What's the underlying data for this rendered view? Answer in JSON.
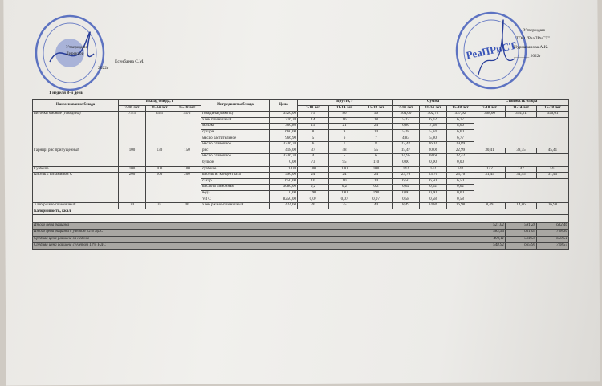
{
  "header_left": {
    "approve": "Утверждаю",
    "position": "Директор",
    "name": "Есенбаева С.М.",
    "year": "2022г",
    "day": "1 неделя 8-й день"
  },
  "header_right": {
    "approve": "Утверждаю",
    "org": "ТОО \"РеаПРиСТ\"",
    "name": "Нурмаханова А.К.",
    "year": "_______ 2022г"
  },
  "stamps": {
    "left_text": "Қазақстан Республикасы білім беру мемлекеттік мекемесі",
    "right_text": "РеаПРиСТ"
  },
  "table": {
    "headers": {
      "name": "Наименование блюда",
      "yield": "Выход блюда, г",
      "ingredients": "Ингредиенты блюда",
      "price": "Цена",
      "brutto": "Брутто, г",
      "sum": "Сумма",
      "cost": "Стоимость блюда",
      "ages": [
        "7-10 лет",
        "11-14 лет",
        "15-18 лет"
      ]
    },
    "dishes": [
      {
        "name": "Биточки мясные (говядина)",
        "yield": [
          "75/5",
          "85/5",
          "95/5"
        ],
        "cost": [
          "308,66",
          "354,21",
          "396,61"
        ],
        "ingredients": [
          {
            "name": "говядина (мякоть)",
            "price": "3520,00",
            "brutto": [
              "75",
              "86",
              "96"
            ],
            "sum": [
              "264,00",
              "302,72",
              "337,92"
            ]
          },
          {
            "name": "хлеб пшеничный",
            "price": "376,20",
            "brutto": [
              "14",
              "16",
              "18"
            ],
            "sum": [
              "5,27",
              "6,02",
              "6,77"
            ]
          },
          {
            "name": "молоко",
            "price": "360,80",
            "brutto": [
              "19",
              "21",
              "24"
            ],
            "sum": [
              "6,86",
              "7,58",
              "8,66"
            ]
          },
          {
            "name": "сухари",
            "price": "660,00",
            "brutto": [
              "8",
              "9",
              "10"
            ],
            "sum": [
              "5,28",
              "5,94",
              "6,60"
            ]
          },
          {
            "name": "масло растительное",
            "price": "966,90",
            "brutto": [
              "5",
              "6",
              "7"
            ],
            "sum": [
              "4,83",
              "5,80",
              "6,77"
            ]
          },
          {
            "name": "масло сливочное",
            "price": "3736,70",
            "brutto": [
              "6",
              "7",
              "8"
            ],
            "sum": [
              "22,42",
              "26,16",
              "29,89"
            ]
          }
        ]
      },
      {
        "name": "Гарнир: рис припущенный",
        "yield": [
          "100",
          "130",
          "150"
        ],
        "cost": [
          "30,41",
          "38,75",
          "45,41"
        ],
        "ingredients": [
          {
            "name": "рис",
            "price": "418,00",
            "brutto": [
              "37",
              "48",
              "55"
            ],
            "sum": [
              "15,47",
              "20,06",
              "22,99"
            ]
          },
          {
            "name": "масло сливочное",
            "price": "3736,70",
            "brutto": [
              "4",
              "5",
              "6"
            ],
            "sum": [
              "14,95",
              "18,68",
              "22,42"
            ]
          },
          {
            "name": "бульон",
            "price": "0,00",
            "brutto": [
              "73",
              "95",
              "110"
            ],
            "sum": [
              "0,00",
              "0,00",
              "0,00"
            ]
          }
        ]
      },
      {
        "name": "Сузбеше",
        "yield": [
          "100",
          "100",
          "100"
        ],
        "cost": [
          "142",
          "142",
          "142"
        ],
        "ingredients": [
          {
            "name": "сузбеше",
            "price": "1420",
            "brutto": [
              "100",
              "100",
              "100"
            ],
            "sum": [
              "142",
              "142",
              "142"
            ]
          }
        ]
      },
      {
        "name": "Кисель с витамином С",
        "yield": [
          "200",
          "200",
          "200"
        ],
        "cost": [
          "31,45",
          "31,45",
          "31,45"
        ],
        "ingredients": [
          {
            "name": "кисель из концентрата",
            "price": "990,00",
            "brutto": [
              "24",
              "24",
              "24"
            ],
            "sum": [
              "23,76",
              "23,76",
              "23,76"
            ]
          },
          {
            "name": "сахар",
            "price": "650,00",
            "brutto": [
              "10",
              "10",
              "10"
            ],
            "sum": [
              "6,50",
              "6,50",
              "6,50"
            ]
          },
          {
            "name": "кислота лимонная",
            "price": "3080,00",
            "brutto": [
              "0,2",
              "0,2",
              "0,2"
            ],
            "sum": [
              "0,62",
              "0,62",
              "0,62"
            ]
          },
          {
            "name": "вода",
            "price": "0,00",
            "brutto": [
              "190",
              "190",
              "190"
            ],
            "sum": [
              "0,00",
              "0,00",
              "0,00"
            ]
          },
          {
            "name": "Vit C",
            "price": "8250,00",
            "brutto": [
              "0,07",
              "0,07",
              "0,07"
            ],
            "sum": [
              "0,58",
              "0,58",
              "0,58"
            ]
          }
        ]
      },
      {
        "name": "Хлеб ржано-пшеничный",
        "yield": [
          "20",
          "35",
          "40"
        ],
        "cost": [
          "8,49",
          "14,86",
          "16,98"
        ],
        "ingredients": [
          {
            "name": "хлеб ржано-пшеничный",
            "price": "424,60",
            "brutto": [
              "20",
              "35",
              "40"
            ],
            "sum": [
              "8,49",
              "14,86",
              "16,98"
            ]
          }
        ]
      }
    ],
    "calories_label": "Калорийность, ккал",
    "summary": [
      {
        "label": "Итого цена рациона",
        "values": [
          "521,02",
          "581,28",
          "632,46"
        ]
      },
      {
        "label": "Итого цена рациона с учетом 12% НДС",
        "values": [
          "583,54",
          "651,03",
          "708,36"
        ]
      },
      {
        "label": "Средняя цена рациона за неделю",
        "values": [
          "490,11",
          "594,59",
          "650,51"
        ]
      },
      {
        "label": "Средняя цена рациона с учетом 12% НДС",
        "values": [
          "548,92",
          "665,94",
          "728,57"
        ]
      }
    ]
  }
}
